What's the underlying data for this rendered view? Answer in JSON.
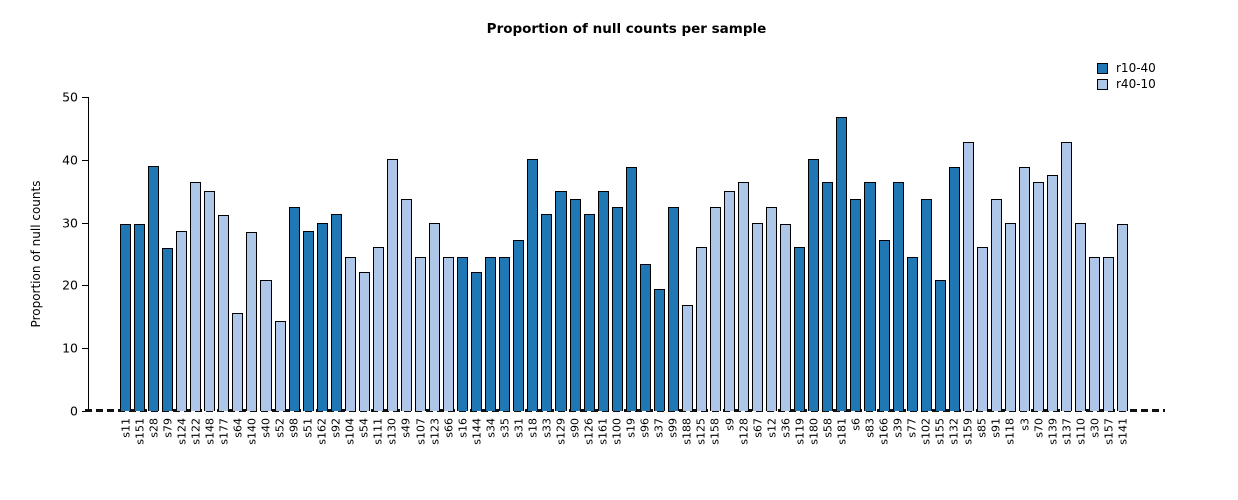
{
  "title": "Proportion of null counts per sample",
  "legend": {
    "items": [
      {
        "label": "r10-40",
        "color": "#1f77b4"
      },
      {
        "label": "r40-10",
        "color": "#aec7e8"
      }
    ]
  },
  "chart_data": {
    "type": "bar",
    "title": "Proportion of null counts per sample",
    "xlabel": "",
    "ylabel": "Proportion of null counts",
    "ylim": [
      0,
      50
    ],
    "yticks": [
      0,
      10,
      20,
      30,
      40,
      50
    ],
    "grid": false,
    "legend_position": "upper-right",
    "zero_line_style": "dashed",
    "groups": {
      "r10-40": "#1f77b4",
      "r40-10": "#aec7e8"
    },
    "samples": [
      {
        "label": "s11",
        "value": 29.8,
        "group": "r10-40"
      },
      {
        "label": "s151",
        "value": 29.8,
        "group": "r10-40"
      },
      {
        "label": "s28",
        "value": 39.0,
        "group": "r10-40"
      },
      {
        "label": "s79",
        "value": 26.0,
        "group": "r10-40"
      },
      {
        "label": "s124",
        "value": 28.6,
        "group": "r40-10"
      },
      {
        "label": "s122",
        "value": 36.4,
        "group": "r40-10"
      },
      {
        "label": "s148",
        "value": 35.0,
        "group": "r40-10"
      },
      {
        "label": "s177",
        "value": 31.2,
        "group": "r40-10"
      },
      {
        "label": "s64",
        "value": 15.6,
        "group": "r40-10"
      },
      {
        "label": "s140",
        "value": 28.5,
        "group": "r40-10"
      },
      {
        "label": "s40",
        "value": 20.8,
        "group": "r40-10"
      },
      {
        "label": "s52",
        "value": 14.3,
        "group": "r40-10"
      },
      {
        "label": "s98",
        "value": 32.5,
        "group": "r10-40"
      },
      {
        "label": "s51",
        "value": 28.6,
        "group": "r10-40"
      },
      {
        "label": "s162",
        "value": 29.9,
        "group": "r10-40"
      },
      {
        "label": "s92",
        "value": 31.3,
        "group": "r10-40"
      },
      {
        "label": "s104",
        "value": 24.6,
        "group": "r40-10"
      },
      {
        "label": "s54",
        "value": 22.1,
        "group": "r40-10"
      },
      {
        "label": "s111",
        "value": 26.1,
        "group": "r40-10"
      },
      {
        "label": "s130",
        "value": 40.2,
        "group": "r40-10"
      },
      {
        "label": "s49",
        "value": 33.8,
        "group": "r40-10"
      },
      {
        "label": "s107",
        "value": 24.6,
        "group": "r40-10"
      },
      {
        "label": "s123",
        "value": 29.9,
        "group": "r40-10"
      },
      {
        "label": "s66",
        "value": 24.6,
        "group": "r40-10"
      },
      {
        "label": "s16",
        "value": 24.6,
        "group": "r10-40"
      },
      {
        "label": "s144",
        "value": 22.1,
        "group": "r10-40"
      },
      {
        "label": "s34",
        "value": 24.6,
        "group": "r10-40"
      },
      {
        "label": "s35",
        "value": 24.6,
        "group": "r10-40"
      },
      {
        "label": "s31",
        "value": 27.3,
        "group": "r10-40"
      },
      {
        "label": "s18",
        "value": 40.2,
        "group": "r10-40"
      },
      {
        "label": "s33",
        "value": 31.3,
        "group": "r10-40"
      },
      {
        "label": "s129",
        "value": 35.0,
        "group": "r10-40"
      },
      {
        "label": "s90",
        "value": 33.8,
        "group": "r10-40"
      },
      {
        "label": "s126",
        "value": 31.3,
        "group": "r10-40"
      },
      {
        "label": "s161",
        "value": 35.0,
        "group": "r10-40"
      },
      {
        "label": "s100",
        "value": 32.5,
        "group": "r10-40"
      },
      {
        "label": "s19",
        "value": 38.9,
        "group": "r10-40"
      },
      {
        "label": "s96",
        "value": 23.4,
        "group": "r10-40"
      },
      {
        "label": "s37",
        "value": 19.5,
        "group": "r10-40"
      },
      {
        "label": "s99",
        "value": 32.5,
        "group": "r10-40"
      },
      {
        "label": "s188",
        "value": 16.9,
        "group": "r40-10"
      },
      {
        "label": "s125",
        "value": 26.1,
        "group": "r40-10"
      },
      {
        "label": "s158",
        "value": 32.5,
        "group": "r40-10"
      },
      {
        "label": "s9",
        "value": 35.0,
        "group": "r40-10"
      },
      {
        "label": "s128",
        "value": 36.4,
        "group": "r40-10"
      },
      {
        "label": "s67",
        "value": 29.9,
        "group": "r40-10"
      },
      {
        "label": "s12",
        "value": 32.5,
        "group": "r40-10"
      },
      {
        "label": "s36",
        "value": 29.8,
        "group": "r40-10"
      },
      {
        "label": "s119",
        "value": 26.1,
        "group": "r10-40"
      },
      {
        "label": "s180",
        "value": 40.2,
        "group": "r10-40"
      },
      {
        "label": "s58",
        "value": 36.5,
        "group": "r10-40"
      },
      {
        "label": "s181",
        "value": 46.8,
        "group": "r10-40"
      },
      {
        "label": "s6",
        "value": 33.8,
        "group": "r10-40"
      },
      {
        "label": "s83",
        "value": 36.4,
        "group": "r10-40"
      },
      {
        "label": "s166",
        "value": 27.3,
        "group": "r10-40"
      },
      {
        "label": "s39",
        "value": 36.4,
        "group": "r10-40"
      },
      {
        "label": "s77",
        "value": 24.6,
        "group": "r10-40"
      },
      {
        "label": "s102",
        "value": 33.8,
        "group": "r10-40"
      },
      {
        "label": "s155",
        "value": 20.9,
        "group": "r10-40"
      },
      {
        "label": "s132",
        "value": 38.9,
        "group": "r10-40"
      },
      {
        "label": "s159",
        "value": 42.8,
        "group": "r40-10"
      },
      {
        "label": "s85",
        "value": 26.1,
        "group": "r40-10"
      },
      {
        "label": "s91",
        "value": 33.8,
        "group": "r40-10"
      },
      {
        "label": "s118",
        "value": 29.9,
        "group": "r40-10"
      },
      {
        "label": "s3",
        "value": 38.9,
        "group": "r40-10"
      },
      {
        "label": "s70",
        "value": 36.5,
        "group": "r40-10"
      },
      {
        "label": "s139",
        "value": 37.6,
        "group": "r40-10"
      },
      {
        "label": "s137",
        "value": 42.8,
        "group": "r40-10"
      },
      {
        "label": "s110",
        "value": 29.9,
        "group": "r40-10"
      },
      {
        "label": "s30",
        "value": 24.6,
        "group": "r40-10"
      },
      {
        "label": "s157",
        "value": 24.6,
        "group": "r40-10"
      },
      {
        "label": "s141",
        "value": 29.8,
        "group": "r40-10"
      }
    ]
  }
}
